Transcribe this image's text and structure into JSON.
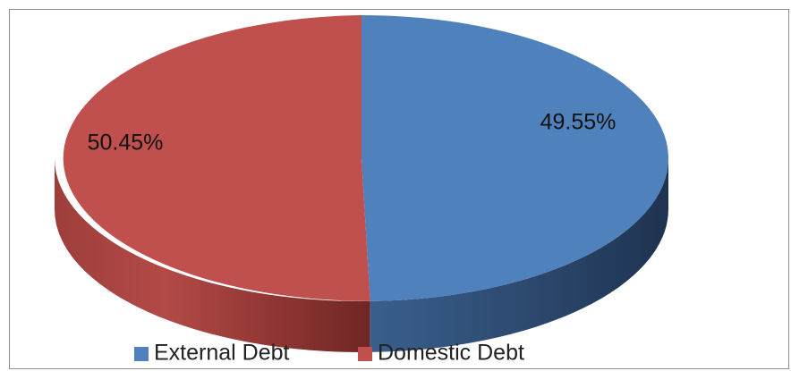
{
  "chart_data": {
    "type": "pie",
    "variant": "3d-flat",
    "categories": [
      "External Debt",
      "Domestic Debt"
    ],
    "values": [
      49.55,
      50.45
    ],
    "data_labels": [
      "49.55%",
      "50.45%"
    ],
    "unit": "%",
    "title": "",
    "legend": {
      "position": "bottom",
      "items": [
        "External Debt",
        "Domestic Debt"
      ]
    },
    "colors": {
      "External Debt": "#4f81bd",
      "Domestic Debt": "#c0504d",
      "border": "#8c8c8c"
    }
  }
}
